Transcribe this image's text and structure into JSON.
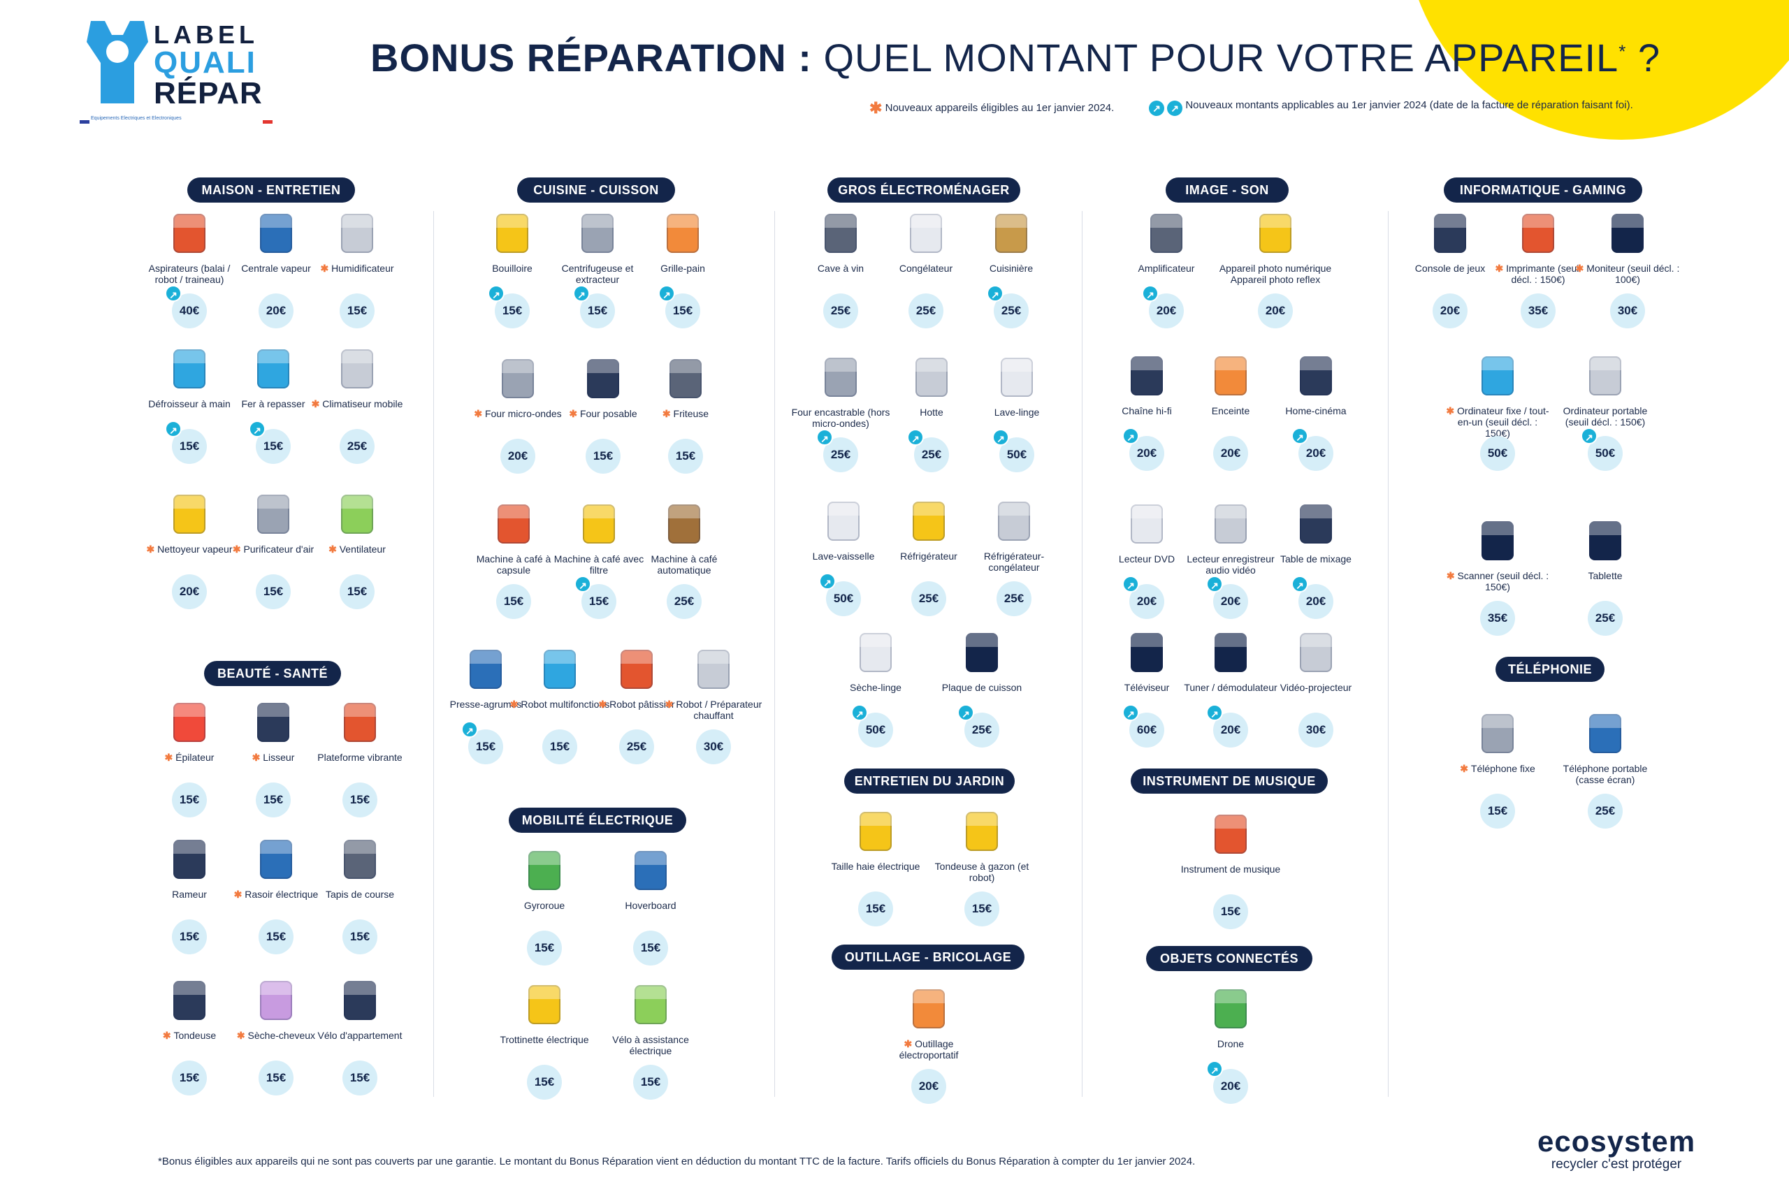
{
  "header": {
    "logo": {
      "line1": "LABEL",
      "line2": "QUALI",
      "line3": "RÉPAR",
      "subline": "Equipements Electriques et Electroniques"
    },
    "title_bold": "BONUS RÉPARATION :",
    "title_light": "QUEL MONTANT POUR VOTRE APPAREIL",
    "title_sup": "*",
    "title_end": " ?",
    "legend_new_devices": "Nouveaux appareils éligibles au 1er janvier 2024.",
    "legend_new_amounts": "Nouveaux montants applicables au 1er janvier 2024 (date de la facture de réparation faisant foi)."
  },
  "colors": {
    "navy": "#13254a",
    "accent_blue": "#1ab0d8",
    "star_orange": "#f27a3f",
    "yellow": "#ffe100",
    "price_bg": "#d6eef8"
  },
  "sections": {
    "maison": {
      "title": "MAISON - ENTRETIEN",
      "items": [
        {
          "name": "Aspirateurs (balai / robot / traineau)",
          "price": "40€",
          "new_amount": true,
          "new_device": false,
          "icon": "vacuum-icon",
          "color": "#e3552f"
        },
        {
          "name": "Centrale vapeur",
          "price": "20€",
          "new_amount": false,
          "new_device": false,
          "icon": "steam-station-icon",
          "color": "#2b6fb8"
        },
        {
          "name": "Humidificateur",
          "price": "15€",
          "new_amount": false,
          "new_device": true,
          "icon": "humidifier-icon",
          "color": "#c7ccd6"
        },
        {
          "name": "Défroisseur à main",
          "price": "15€",
          "new_amount": true,
          "new_device": false,
          "icon": "garment-steamer-icon",
          "color": "#2fa6e0"
        },
        {
          "name": "Fer à repasser",
          "price": "15€",
          "new_amount": true,
          "new_device": false,
          "icon": "iron-icon",
          "color": "#2fa6e0"
        },
        {
          "name": "Climatiseur mobile",
          "price": "25€",
          "new_amount": false,
          "new_device": true,
          "icon": "air-conditioner-icon",
          "color": "#c7ccd6"
        },
        {
          "name": "Nettoyeur vapeur",
          "price": "20€",
          "new_amount": false,
          "new_device": true,
          "icon": "steam-cleaner-icon",
          "color": "#f5c518"
        },
        {
          "name": "Purificateur d'air",
          "price": "15€",
          "new_amount": false,
          "new_device": true,
          "icon": "air-purifier-icon",
          "color": "#9aa3b3"
        },
        {
          "name": "Ventilateur",
          "price": "15€",
          "new_amount": false,
          "new_device": true,
          "icon": "fan-icon",
          "color": "#8ccf5a"
        }
      ]
    },
    "beaute": {
      "title": "BEAUTÉ - SANTÉ",
      "items": [
        {
          "name": "Épilateur",
          "price": "15€",
          "new_amount": false,
          "new_device": true,
          "icon": "epilator-icon",
          "color": "#f04a3a"
        },
        {
          "name": "Lisseur",
          "price": "15€",
          "new_amount": false,
          "new_device": true,
          "icon": "hair-straightener-icon",
          "color": "#2b3a5a"
        },
        {
          "name": "Plateforme vibrante",
          "price": "15€",
          "new_amount": false,
          "new_device": false,
          "icon": "vibration-platform-icon",
          "color": "#e3552f"
        },
        {
          "name": "Rameur",
          "price": "15€",
          "new_amount": false,
          "new_device": false,
          "icon": "rowing-machine-icon",
          "color": "#2b3a5a"
        },
        {
          "name": "Rasoir électrique",
          "price": "15€",
          "new_amount": false,
          "new_device": true,
          "icon": "electric-razor-icon",
          "color": "#2b6fb8"
        },
        {
          "name": "Tapis de course",
          "price": "15€",
          "new_amount": false,
          "new_device": false,
          "icon": "treadmill-icon",
          "color": "#5a6478"
        },
        {
          "name": "Tondeuse",
          "price": "15€",
          "new_amount": false,
          "new_device": true,
          "icon": "hair-clipper-icon",
          "color": "#2b3a5a"
        },
        {
          "name": "Sèche-cheveux",
          "price": "15€",
          "new_amount": false,
          "new_device": true,
          "icon": "hair-dryer-icon",
          "color": "#c89be0"
        },
        {
          "name": "Vélo d'appartement",
          "price": "15€",
          "new_amount": false,
          "new_device": false,
          "icon": "exercise-bike-icon",
          "color": "#2b3a5a"
        }
      ]
    },
    "cuisine": {
      "title": "CUISINE - CUISSON",
      "items": [
        {
          "name": "Bouilloire",
          "price": "15€",
          "new_amount": true,
          "new_device": false,
          "icon": "kettle-icon",
          "color": "#f5c518"
        },
        {
          "name": "Centrifugeuse et extracteur",
          "price": "15€",
          "new_amount": true,
          "new_device": false,
          "icon": "juicer-icon",
          "color": "#9aa3b3"
        },
        {
          "name": "Grille-pain",
          "price": "15€",
          "new_amount": true,
          "new_device": false,
          "icon": "toaster-icon",
          "color": "#f28a3a"
        },
        {
          "name": "Four micro-ondes",
          "price": "20€",
          "new_amount": false,
          "new_device": true,
          "icon": "microwave-icon",
          "color": "#9aa3b3"
        },
        {
          "name": "Four posable",
          "price": "15€",
          "new_amount": false,
          "new_device": true,
          "icon": "countertop-oven-icon",
          "color": "#2b3a5a"
        },
        {
          "name": "Friteuse",
          "price": "15€",
          "new_amount": false,
          "new_device": true,
          "icon": "fryer-icon",
          "color": "#5a6478"
        },
        {
          "name": "Machine à café à capsule",
          "price": "15€",
          "new_amount": false,
          "new_device": false,
          "icon": "capsule-coffee-icon",
          "color": "#e3552f"
        },
        {
          "name": "Machine à café avec filtre",
          "price": "15€",
          "new_amount": true,
          "new_device": false,
          "icon": "filter-coffee-icon",
          "color": "#f5c518"
        },
        {
          "name": "Machine à café automatique",
          "price": "25€",
          "new_amount": false,
          "new_device": false,
          "icon": "espresso-machine-icon",
          "color": "#a0703a"
        },
        {
          "name": "Presse-agrumes",
          "price": "15€",
          "new_amount": true,
          "new_device": false,
          "icon": "citrus-press-icon",
          "color": "#2b6fb8"
        },
        {
          "name": "Robot multifonctions",
          "price": "15€",
          "new_amount": false,
          "new_device": true,
          "icon": "food-processor-icon",
          "color": "#2fa6e0"
        },
        {
          "name": "Robot pâtissier",
          "price": "25€",
          "new_amount": false,
          "new_device": true,
          "icon": "stand-mixer-icon",
          "color": "#e3552f"
        },
        {
          "name": "Robot / Préparateur chauffant",
          "price": "30€",
          "new_amount": false,
          "new_device": true,
          "icon": "cooking-robot-icon",
          "color": "#c7ccd6"
        }
      ]
    },
    "mobilite": {
      "title": "MOBILITÉ ÉLECTRIQUE",
      "items": [
        {
          "name": "Gyroroue",
          "price": "15€",
          "new_amount": false,
          "new_device": false,
          "icon": "monowheel-icon",
          "color": "#4caf50"
        },
        {
          "name": "Hoverboard",
          "price": "15€",
          "new_amount": false,
          "new_device": false,
          "icon": "hoverboard-icon",
          "color": "#2b6fb8"
        },
        {
          "name": "Trottinette électrique",
          "price": "15€",
          "new_amount": false,
          "new_device": false,
          "icon": "scooter-icon",
          "color": "#f5c518"
        },
        {
          "name": "Vélo à assistance électrique",
          "price": "15€",
          "new_amount": false,
          "new_device": false,
          "icon": "ebike-icon",
          "color": "#8ccf5a"
        }
      ]
    },
    "gros": {
      "title": "GROS ÉLECTROMÉNAGER",
      "items": [
        {
          "name": "Cave à vin",
          "price": "25€",
          "new_amount": false,
          "new_device": false,
          "icon": "wine-cellar-icon",
          "color": "#5a6478"
        },
        {
          "name": "Congélateur",
          "price": "25€",
          "new_amount": false,
          "new_device": false,
          "icon": "freezer-icon",
          "color": "#e6e9ef"
        },
        {
          "name": "Cuisinière",
          "price": "25€",
          "new_amount": true,
          "new_device": false,
          "icon": "cooker-icon",
          "color": "#c89a4a"
        },
        {
          "name": "Four encastrable (hors micro-ondes)",
          "price": "25€",
          "new_amount": true,
          "new_device": false,
          "icon": "built-in-oven-icon",
          "color": "#9aa3b3"
        },
        {
          "name": "Hotte",
          "price": "25€",
          "new_amount": true,
          "new_device": false,
          "icon": "range-hood-icon",
          "color": "#c7ccd6"
        },
        {
          "name": "Lave-linge",
          "price": "50€",
          "new_amount": true,
          "new_device": false,
          "icon": "washing-machine-icon",
          "color": "#e6e9ef"
        },
        {
          "name": "Lave-vaisselle",
          "price": "50€",
          "new_amount": true,
          "new_device": false,
          "icon": "dishwasher-icon",
          "color": "#e6e9ef"
        },
        {
          "name": "Réfrigérateur",
          "price": "25€",
          "new_amount": false,
          "new_device": false,
          "icon": "fridge-icon",
          "color": "#f5c518"
        },
        {
          "name": "Réfrigérateur-congélateur",
          "price": "25€",
          "new_amount": false,
          "new_device": false,
          "icon": "fridge-freezer-icon",
          "color": "#c7ccd6"
        },
        {
          "name": "Sèche-linge",
          "price": "50€",
          "new_amount": true,
          "new_device": false,
          "icon": "dryer-icon",
          "color": "#e6e9ef"
        },
        {
          "name": "Plaque de cuisson",
          "price": "25€",
          "new_amount": true,
          "new_device": false,
          "icon": "cooktop-icon",
          "color": "#13254a"
        }
      ]
    },
    "jardin": {
      "title": "ENTRETIEN DU JARDIN",
      "items": [
        {
          "name": "Taille haie électrique",
          "price": "15€",
          "new_amount": false,
          "new_device": false,
          "icon": "hedge-trimmer-icon",
          "color": "#f5c518"
        },
        {
          "name": "Tondeuse à gazon (et robot)",
          "price": "15€",
          "new_amount": false,
          "new_device": false,
          "icon": "lawn-mower-icon",
          "color": "#f5c518"
        }
      ]
    },
    "outillage": {
      "title": "OUTILLAGE - BRICOLAGE",
      "items": [
        {
          "name": "Outillage électroportatif",
          "price": "20€",
          "new_amount": false,
          "new_device": true,
          "icon": "power-tools-icon",
          "color": "#f28a3a"
        }
      ]
    },
    "image": {
      "title": "IMAGE - SON",
      "items": [
        {
          "name": "Amplificateur",
          "price": "20€",
          "new_amount": true,
          "new_device": false,
          "icon": "amplifier-icon",
          "color": "#5a6478"
        },
        {
          "name": "Appareil photo numérique Appareil photo reflex",
          "price": "20€",
          "new_amount": false,
          "new_device": false,
          "icon": "camera-icon",
          "color": "#f5c518",
          "wide": true
        },
        {
          "name": "Chaîne hi-fi",
          "price": "20€",
          "new_amount": true,
          "new_device": false,
          "icon": "hifi-icon",
          "color": "#2b3a5a"
        },
        {
          "name": "Enceinte",
          "price": "20€",
          "new_amount": false,
          "new_device": false,
          "icon": "speaker-icon",
          "color": "#f28a3a"
        },
        {
          "name": "Home-cinéma",
          "price": "20€",
          "new_amount": true,
          "new_device": false,
          "icon": "home-cinema-icon",
          "color": "#2b3a5a"
        },
        {
          "name": "Lecteur DVD",
          "price": "20€",
          "new_amount": true,
          "new_device": false,
          "icon": "dvd-player-icon",
          "color": "#e6e9ef"
        },
        {
          "name": "Lecteur enregistreur audio vidéo",
          "price": "20€",
          "new_amount": true,
          "new_device": false,
          "icon": "recorder-icon",
          "color": "#c7ccd6"
        },
        {
          "name": "Table de mixage",
          "price": "20€",
          "new_amount": true,
          "new_device": false,
          "icon": "mixing-desk-icon",
          "color": "#2b3a5a"
        },
        {
          "name": "Téléviseur",
          "price": "60€",
          "new_amount": true,
          "new_device": false,
          "icon": "tv-icon",
          "color": "#13254a"
        },
        {
          "name": "Tuner / démodulateur",
          "price": "20€",
          "new_amount": true,
          "new_device": false,
          "icon": "tuner-icon",
          "color": "#13254a"
        },
        {
          "name": "Vidéo-projecteur",
          "price": "30€",
          "new_amount": false,
          "new_device": false,
          "icon": "projector-icon",
          "color": "#c7ccd6"
        }
      ]
    },
    "musique": {
      "title": "INSTRUMENT DE MUSIQUE",
      "items": [
        {
          "name": "Instrument de musique",
          "price": "15€",
          "new_amount": false,
          "new_device": false,
          "icon": "guitar-icon",
          "color": "#e3552f"
        }
      ]
    },
    "objets": {
      "title": "OBJETS CONNECTÉS",
      "items": [
        {
          "name": "Drone",
          "price": "20€",
          "new_amount": true,
          "new_device": false,
          "icon": "drone-icon",
          "color": "#4caf50"
        }
      ]
    },
    "info": {
      "title": "INFORMATIQUE - GAMING",
      "items": [
        {
          "name": "Console de jeux",
          "price": "20€",
          "new_amount": false,
          "new_device": false,
          "icon": "game-console-icon",
          "color": "#2b3a5a"
        },
        {
          "name": "Imprimante (seuil décl. : 150€)",
          "price": "35€",
          "new_amount": false,
          "new_device": true,
          "icon": "printer-icon",
          "color": "#e3552f"
        },
        {
          "name": "Moniteur (seuil décl. : 100€)",
          "price": "30€",
          "new_amount": false,
          "new_device": true,
          "icon": "monitor-icon",
          "color": "#13254a"
        },
        {
          "name": "Ordinateur fixe / tout-en-un (seuil décl. : 150€)",
          "price": "50€",
          "new_amount": false,
          "new_device": true,
          "icon": "desktop-computer-icon",
          "color": "#2fa6e0"
        },
        {
          "name": "Ordinateur portable (seuil décl. : 150€)",
          "price": "50€",
          "new_amount": true,
          "new_device": false,
          "icon": "laptop-icon",
          "color": "#c7ccd6"
        },
        {
          "name": "Scanner (seuil décl. : 150€)",
          "price": "35€",
          "new_amount": false,
          "new_device": true,
          "icon": "scanner-icon",
          "color": "#13254a"
        },
        {
          "name": "Tablette",
          "price": "25€",
          "new_amount": false,
          "new_device": false,
          "icon": "tablet-icon",
          "color": "#13254a"
        }
      ]
    },
    "telephonie": {
      "title": "TÉLÉPHONIE",
      "items": [
        {
          "name": "Téléphone fixe",
          "price": "15€",
          "new_amount": false,
          "new_device": true,
          "icon": "landline-phone-icon",
          "color": "#9aa3b3"
        },
        {
          "name": "Téléphone portable (casse écran)",
          "price": "25€",
          "new_amount": false,
          "new_device": false,
          "icon": "mobile-phone-icon",
          "color": "#2b6fb8"
        }
      ]
    }
  },
  "footer": {
    "footnote": "*Bonus éligibles aux appareils qui ne sont pas couverts par une garantie. Le montant du Bonus Réparation vient en déduction du montant TTC de la facture. Tarifs officiels du Bonus Réparation à compter du 1er janvier 2024.",
    "brand": "ecosystem",
    "tagline": "recycler c'est protéger"
  }
}
